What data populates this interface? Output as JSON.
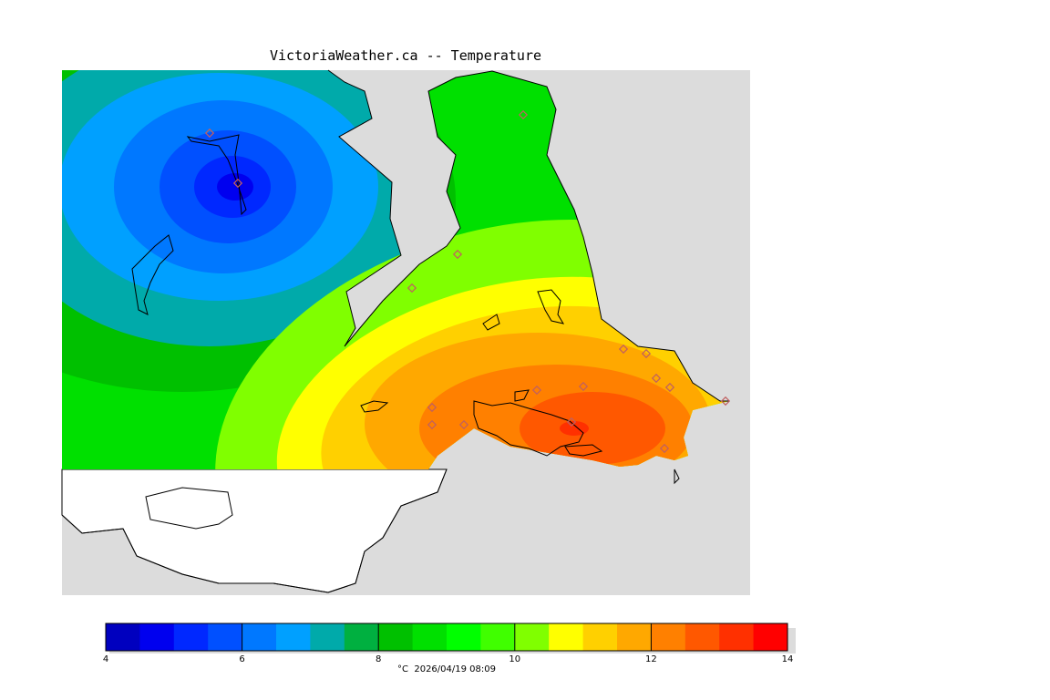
{
  "title": "VictoriaWeather.ca -- Temperature",
  "footer": {
    "unit": "°C",
    "timestamp": "2026/04/19 08:09"
  },
  "colorbar": {
    "min": 4,
    "max": 14,
    "step": 0.5,
    "tick_labels": [
      "4",
      "6",
      "8",
      "10",
      "12",
      "14"
    ],
    "colors": [
      "#00008f",
      "#0000bf",
      "#0000ef",
      "#0028ff",
      "#0050ff",
      "#0078ff",
      "#00a0ff",
      "#00aaaa",
      "#00b040",
      "#00c000",
      "#00e000",
      "#00ff00",
      "#40ff00",
      "#80ff00",
      "#ffff00",
      "#ffd000",
      "#ffa800",
      "#ff8000",
      "#ff5800",
      "#ff3000",
      "#ff0000"
    ]
  },
  "colors": {
    "land_bg": "#dcdcdc",
    "water": "#ffffff",
    "station_marker": "#c06060"
  }
}
